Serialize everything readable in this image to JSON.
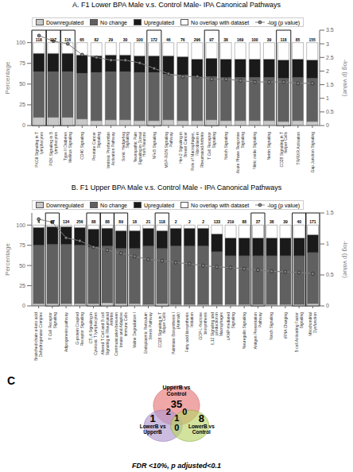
{
  "chart_data": [
    {
      "type": "bar",
      "stacked": true,
      "title": "A. F1 Lower BPA Male v.s. Control Male- IPA Canonical Pathways",
      "categories": [
        "PKCθ Signaling in T\nlymphocytes",
        "PI3K Signaling in B\nlymphocytes",
        "Type II Diabetes\nMellitus Signaling",
        "CD40 Signaling",
        "Prostate Cancer\nSignaling",
        "Intrinsic Prothrombin\nActivation Pathway",
        "Sonic Hedgehog\nSignaling",
        "Neuropathic Pain\nSignaling in Dorsal\nHorn Neurons",
        "NFκB Signaling",
        "MSP-RON Signaling\nPathway",
        "Her-2 Signaling in\nBreast Cancer",
        "Role of Macrophages,\nFibroblasts in\nRheumatoid Arthritis",
        "T Cell Receptor\nSignaling",
        "Notch Signaling",
        "Acute Phase Response\nSignaling",
        "Nitric oxide Signaling",
        "Netrin Signaling",
        "CD28 Signaling in T\nhelper Cells",
        "TR/RXR Activation",
        "Gap Junction Signaling"
      ],
      "series": [
        {
          "name": "Downregulated",
          "color": "#c8c8c8",
          "values": [
            10,
            10,
            10,
            8,
            6,
            7,
            7,
            6,
            6,
            7,
            6,
            6,
            7,
            6,
            6,
            6,
            6,
            5,
            6,
            5
          ]
        },
        {
          "name": "No change",
          "color": "#606060",
          "values": [
            55,
            55,
            55,
            55,
            58,
            58,
            58,
            58,
            58,
            55,
            55,
            52,
            52,
            52,
            52,
            52,
            52,
            52,
            52,
            52
          ]
        },
        {
          "name": "Upregulated",
          "color": "#1a1a1a",
          "values": [
            22,
            22,
            22,
            22,
            20,
            20,
            20,
            20,
            20,
            22,
            22,
            22,
            22,
            22,
            22,
            22,
            22,
            22,
            22,
            22
          ]
        },
        {
          "name": "No overlap with dataset",
          "color": "#ffffff",
          "values": [
            13,
            13,
            13,
            15,
            16,
            15,
            15,
            16,
            16,
            16,
            17,
            20,
            19,
            20,
            20,
            20,
            20,
            21,
            20,
            21
          ]
        },
        {
          "name": "-log (p value)",
          "type": "line",
          "axis": "y2",
          "color": "#808080",
          "marker": "circle",
          "values": [
            3.3,
            3.1,
            3.0,
            2.6,
            2.5,
            2.4,
            2.4,
            2.3,
            2.1,
            1.9,
            1.8,
            1.8,
            1.7,
            1.7,
            1.65,
            1.6,
            1.6,
            1.6,
            1.55,
            1.55
          ]
        }
      ],
      "n_genes": [
        118,
        117,
        116,
        65,
        82,
        29,
        30,
        100,
        172,
        46,
        76,
        296,
        97,
        38,
        169,
        100,
        39,
        118,
        85,
        155
      ],
      "highlighted": [
        0,
        1,
        2,
        8,
        12,
        17
      ],
      "ylabel": "Percentage",
      "y2label": "-log (p value)",
      "ylim": [
        0,
        115
      ],
      "yticks": [
        0,
        25,
        50,
        75,
        100
      ],
      "y2lim": [
        0,
        3.5
      ],
      "y2ticks": [
        0,
        0.5,
        1,
        1.5,
        2,
        2.5,
        3,
        3.5
      ],
      "grid": false,
      "legend": "upper left"
    },
    {
      "type": "bar",
      "stacked": true,
      "title": "B. F1 Upper BPA Male v.s. Control Male - IPA Canonical Pathways",
      "categories": [
        "Branched-chain α-keto acid\nDehydrogenase Complex",
        "T Cell Receptor\nSignaling",
        "Adipogenesis pathway",
        "G-protein Coupled\nReceptor Signaling",
        "CTL4 Signaling in\nCytotoxic T lymphocytes",
        "Altered T Cell and B cell\nSignaling in Rheumatoid\nArthritis",
        "Communication between\nInnate and Adaptive\nImmune Cells",
        "Valine Degradation I",
        "Endoplasmic Reticulum\nStress Pathway",
        "CD28 Signaling in T\nhelper Cells",
        "Palmitate Biosynthesis I\n(Animals)",
        "Fatty acid biosynthesis\nInitiation",
        "GDP-L-fructose\nbiosynthesis",
        "IL12 Signaling and\nproduction in\nMacrophages",
        "cAMP mediated\nSignaling",
        "Neuregulin Signaling",
        "Antigen Presentation\nPathway",
        "Notch Signaling",
        "tRNA Charging",
        "B cell Activating Factor\nSignaling",
        "Mitochondrial\nDysfunction"
      ],
      "series": [
        {
          "name": "Downregulated",
          "color": "#c8c8c8",
          "values": [
            3,
            3,
            3,
            3,
            3,
            4,
            3,
            3,
            2,
            3,
            2,
            2,
            2,
            2,
            2,
            2,
            2,
            2,
            2,
            2,
            3
          ]
        },
        {
          "name": "No change",
          "color": "#606060",
          "values": [
            72,
            73,
            73,
            72,
            70,
            70,
            68,
            68,
            72,
            68,
            72,
            72,
            72,
            65,
            60,
            60,
            60,
            60,
            60,
            60,
            63
          ]
        },
        {
          "name": "Upregulated",
          "color": "#1a1a1a",
          "values": [
            22,
            22,
            22,
            22,
            22,
            22,
            22,
            22,
            22,
            22,
            22,
            22,
            22,
            22,
            22,
            22,
            22,
            22,
            22,
            22,
            22
          ]
        },
        {
          "name": "No overlap with dataset",
          "color": "#ffffff",
          "values": [
            3,
            2,
            2,
            3,
            5,
            4,
            7,
            7,
            4,
            7,
            4,
            4,
            4,
            11,
            16,
            16,
            16,
            16,
            16,
            16,
            12
          ]
        },
        {
          "name": "-log (p value)",
          "type": "line",
          "axis": "y2",
          "color": "#808080",
          "marker": "circle",
          "values": [
            1.4,
            1.35,
            1.1,
            1.05,
            0.95,
            0.9,
            0.85,
            0.8,
            0.75,
            0.73,
            0.7,
            0.68,
            0.65,
            0.63,
            0.62,
            0.6,
            0.58,
            0.56,
            0.55,
            0.54,
            0.52
          ]
        }
      ],
      "n_genes": [
        4,
        97,
        134,
        256,
        88,
        88,
        89,
        18,
        21,
        118,
        2,
        2,
        2,
        133,
        219,
        88,
        37,
        38,
        39,
        40,
        171
      ],
      "highlighted": [
        1,
        4,
        5,
        6,
        9,
        16,
        19,
        20
      ],
      "ylabel": "Percentage",
      "y2label": "-log (p value)",
      "ylim": [
        0,
        115
      ],
      "yticks": [
        0,
        25,
        50,
        75,
        100
      ],
      "y2lim": [
        0,
        1.5
      ],
      "y2ticks": [
        0,
        0.5,
        1,
        1.5
      ],
      "grid": false,
      "legend": "upper left"
    },
    {
      "type": "venn",
      "title": "C",
      "sets": [
        {
          "name": "UpperB vs\nControl",
          "color": "#e87878"
        },
        {
          "name": "LowerB vs\nUpperB",
          "color": "#b09ad0"
        },
        {
          "name": "LowerB vs\nControl",
          "color": "#b8d468"
        }
      ],
      "regions": [
        {
          "sets": [
            0
          ],
          "value": 35
        },
        {
          "sets": [
            1
          ],
          "value": 1
        },
        {
          "sets": [
            2
          ],
          "value": 8
        },
        {
          "sets": [
            0,
            1
          ],
          "value": 2
        },
        {
          "sets": [
            0,
            2
          ],
          "value": 0
        },
        {
          "sets": [
            1,
            2
          ],
          "value": 0
        },
        {
          "sets": [
            0,
            1,
            2
          ],
          "value": 1
        }
      ],
      "annotations": [
        "FDR <10%, p adjusted<0.1"
      ]
    }
  ]
}
